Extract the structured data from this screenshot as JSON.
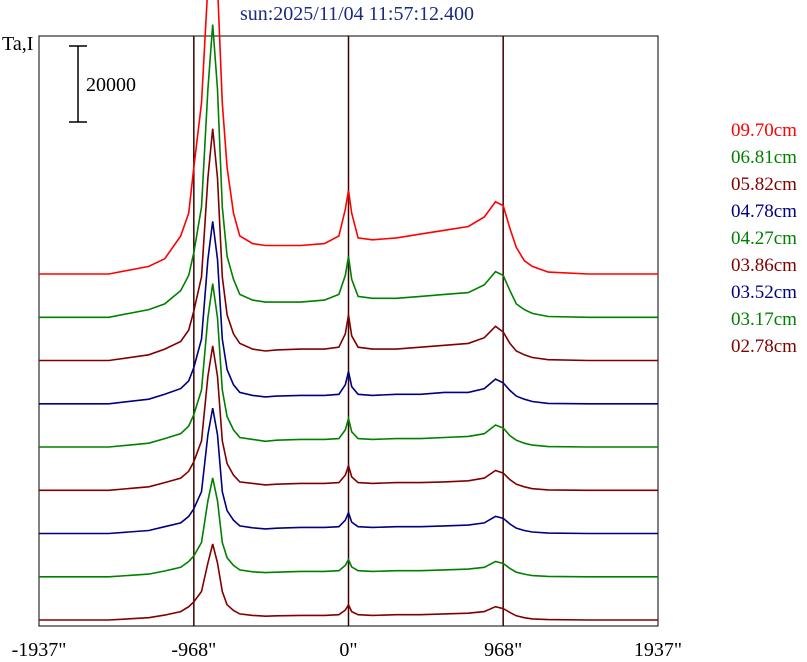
{
  "chart_data": {
    "type": "line",
    "title": "sun:2025/11/04 11:57:12.400",
    "ylabel": "Ta,I",
    "scale_bar_label": "20000",
    "x_ticks": [
      {
        "value": -1937,
        "label": "-1937\""
      },
      {
        "value": -968,
        "label": "-968\""
      },
      {
        "value": 0,
        "label": "0\""
      },
      {
        "value": 968,
        "label": "968\""
      },
      {
        "value": 1937,
        "label": "1937\""
      }
    ],
    "xlim": [
      -1937,
      1937
    ],
    "vertical_lines": [
      -968,
      0,
      968
    ],
    "profile_x": [
      -1937,
      -1500,
      -1250,
      -1150,
      -1050,
      -1000,
      -968,
      -920,
      -880,
      -850,
      -820,
      -790,
      -760,
      -720,
      -680,
      -600,
      -520,
      -450,
      -300,
      -150,
      -60,
      -20,
      0,
      20,
      60,
      150,
      300,
      450,
      600,
      750,
      850,
      920,
      968,
      1010,
      1050,
      1100,
      1150,
      1250,
      1500,
      1937
    ],
    "series": [
      {
        "name": "09.70cm",
        "color": "#ff0000",
        "values": [
          0,
          0,
          2000,
          4000,
          10000,
          16000,
          28000,
          45000,
          76000,
          100000,
          76000,
          45000,
          28000,
          16000,
          10000,
          8000,
          7500,
          7500,
          7500,
          8000,
          10000,
          17000,
          22000,
          16000,
          9500,
          9000,
          9500,
          10500,
          11500,
          12500,
          15000,
          19000,
          18000,
          12000,
          7000,
          3500,
          2000,
          500,
          0,
          0
        ]
      },
      {
        "name": "06.81cm",
        "color": "#008000",
        "values": [
          0,
          0,
          2000,
          3500,
          7000,
          11000,
          17000,
          29000,
          60000,
          77000,
          60000,
          29000,
          16000,
          10000,
          6000,
          4500,
          4000,
          4000,
          4000,
          4500,
          6000,
          11000,
          16000,
          10000,
          5500,
          5000,
          5000,
          5500,
          6000,
          6500,
          8500,
          12000,
          11000,
          7000,
          3500,
          2000,
          1000,
          200,
          0,
          0
        ]
      },
      {
        "name": "05.82cm",
        "color": "#800000",
        "values": [
          0,
          0,
          1500,
          3000,
          5000,
          8000,
          13000,
          22000,
          48000,
          61000,
          48000,
          22000,
          12000,
          7000,
          4500,
          3000,
          2500,
          2800,
          3000,
          3000,
          3500,
          7000,
          12000,
          6500,
          3500,
          3000,
          3000,
          3500,
          4000,
          4500,
          6000,
          9000,
          7500,
          4500,
          2500,
          1500,
          800,
          200,
          0,
          0
        ]
      },
      {
        "name": "04.78cm",
        "color": "#000080",
        "values": [
          0,
          0,
          1200,
          2500,
          4000,
          6000,
          9500,
          17000,
          38000,
          48000,
          38000,
          17000,
          9000,
          5000,
          3000,
          2200,
          1800,
          2000,
          2200,
          2200,
          2500,
          5000,
          8500,
          4500,
          2500,
          2200,
          2500,
          2500,
          3000,
          3000,
          4000,
          6500,
          5500,
          3500,
          2000,
          1200,
          600,
          100,
          0,
          0
        ]
      },
      {
        "name": "04.27cm",
        "color": "#008000",
        "values": [
          0,
          0,
          1000,
          2200,
          3500,
          5500,
          8500,
          15000,
          34000,
          43000,
          34000,
          15000,
          8000,
          4500,
          2500,
          2000,
          1500,
          1800,
          2000,
          2000,
          2200,
          4500,
          7500,
          4000,
          2200,
          2000,
          2200,
          2200,
          2500,
          2800,
          3500,
          5800,
          5000,
          3000,
          1800,
          1000,
          500,
          100,
          0,
          0
        ]
      },
      {
        "name": "03.86cm",
        "color": "#800000",
        "values": [
          0,
          0,
          900,
          2000,
          3200,
          5000,
          7500,
          13000,
          30000,
          38000,
          30000,
          13000,
          7000,
          4000,
          2200,
          1800,
          1400,
          1600,
          1800,
          1800,
          2000,
          4000,
          6500,
          3500,
          2000,
          1800,
          2000,
          2000,
          2200,
          2500,
          3200,
          5200,
          4500,
          2800,
          1600,
          900,
          400,
          100,
          0,
          0
        ]
      },
      {
        "name": "03.52cm",
        "color": "#000080",
        "values": [
          0,
          0,
          800,
          1800,
          2800,
          4500,
          6500,
          11000,
          26000,
          33000,
          26000,
          11000,
          6000,
          3500,
          2000,
          1500,
          1200,
          1400,
          1600,
          1600,
          1800,
          3500,
          5500,
          3000,
          1800,
          1600,
          1800,
          1800,
          2000,
          2200,
          2800,
          4500,
          4000,
          2500,
          1400,
          800,
          400,
          100,
          0,
          0
        ]
      },
      {
        "name": "03.17cm",
        "color": "#008000",
        "values": [
          0,
          0,
          700,
          1500,
          2500,
          4000,
          5500,
          9000,
          20000,
          26000,
          20000,
          9000,
          5000,
          3000,
          1800,
          1300,
          1100,
          1200,
          1400,
          1400,
          1600,
          3000,
          4500,
          2600,
          1600,
          1400,
          1600,
          1600,
          1800,
          2000,
          2500,
          4000,
          3500,
          2200,
          1200,
          700,
          300,
          100,
          0,
          0
        ]
      },
      {
        "name": "02.78cm",
        "color": "#800000",
        "values": [
          0,
          0,
          600,
          1300,
          2200,
          3500,
          4800,
          7500,
          15000,
          20000,
          15000,
          7500,
          4000,
          2500,
          1600,
          1200,
          1000,
          1100,
          1200,
          1200,
          1400,
          2600,
          4000,
          2200,
          1400,
          1200,
          1400,
          1400,
          1600,
          1800,
          2200,
          3500,
          3000,
          2000,
          1100,
          600,
          300,
          100,
          0,
          0
        ]
      }
    ]
  }
}
